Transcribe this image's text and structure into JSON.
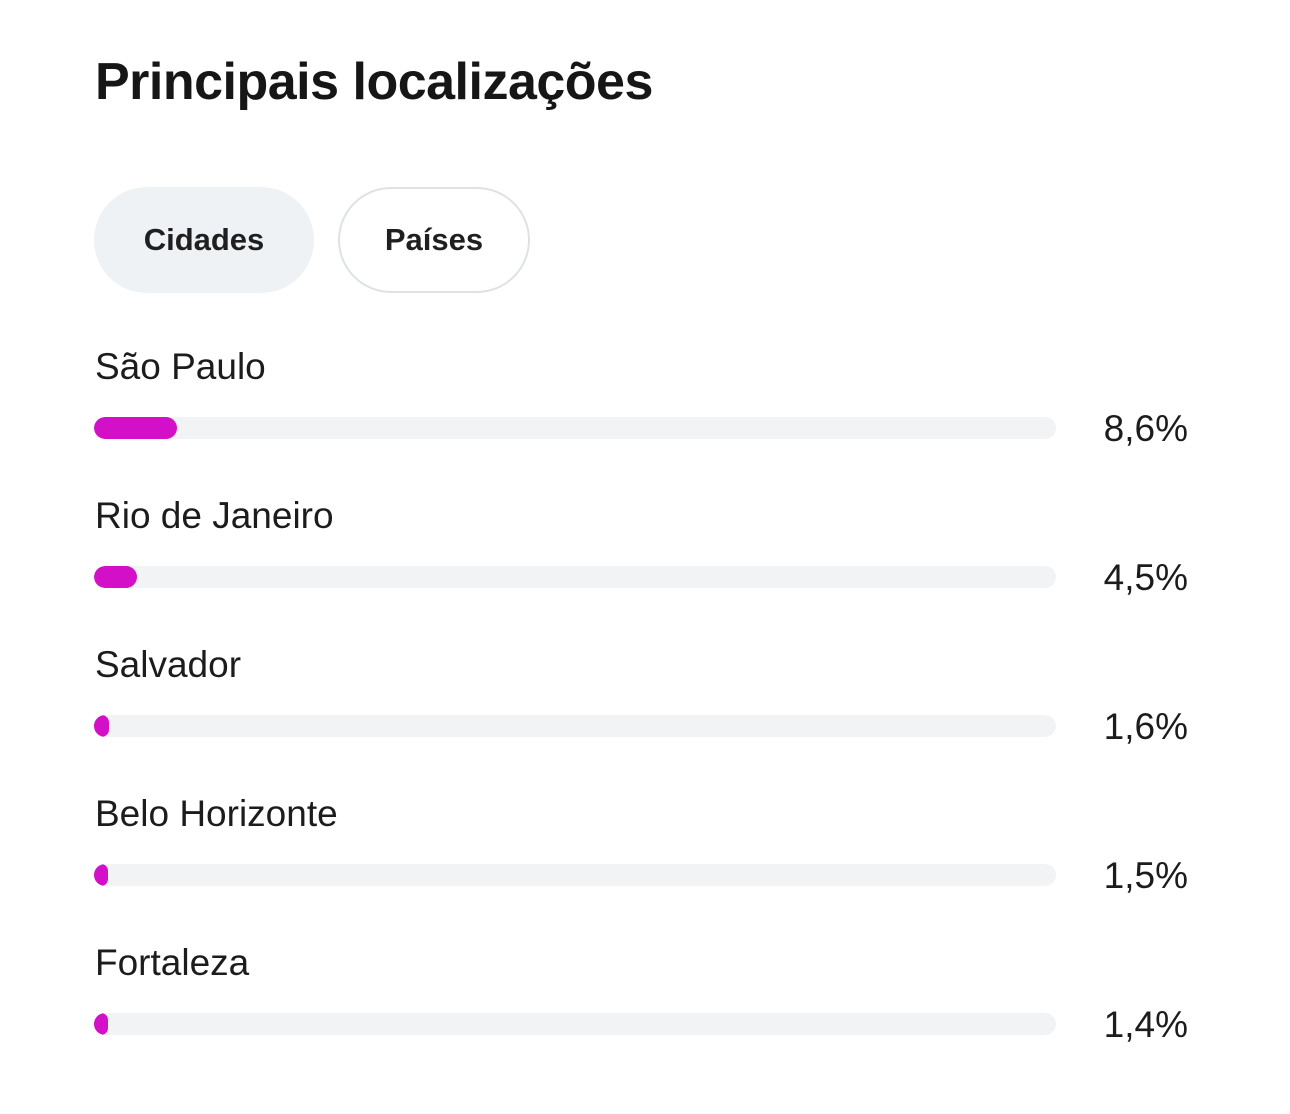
{
  "title": "Principais localizações",
  "tabs": [
    {
      "label": "Cidades",
      "selected": true
    },
    {
      "label": "Países",
      "selected": false
    }
  ],
  "bar_color": "#d310c8",
  "track_color": "#f1f3f5",
  "locations": [
    {
      "name": "São Paulo",
      "percent_label": "8,6%",
      "value": 8.6
    },
    {
      "name": "Rio de Janeiro",
      "percent_label": "4,5%",
      "value": 4.5
    },
    {
      "name": "Salvador",
      "percent_label": "1,6%",
      "value": 1.6
    },
    {
      "name": "Belo Horizonte",
      "percent_label": "1,5%",
      "value": 1.5
    },
    {
      "name": "Fortaleza",
      "percent_label": "1,4%",
      "value": 1.4
    }
  ]
}
